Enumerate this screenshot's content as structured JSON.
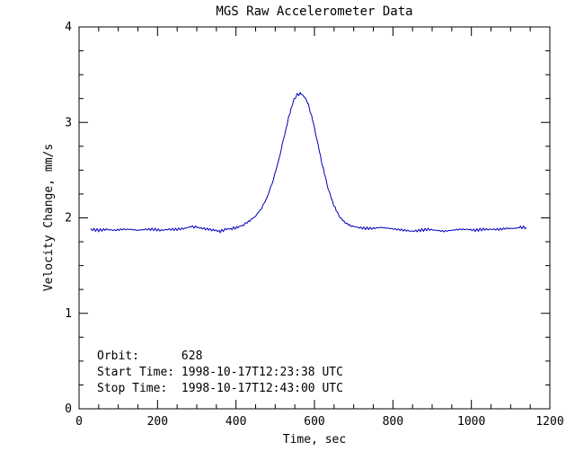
{
  "window_title": "MGS Raw Accelerometer Data",
  "chart_data": {
    "type": "line",
    "title": "MGS Raw Accelerometer Data",
    "xlabel": "Time, sec",
    "ylabel": "Velocity Change, mm/s",
    "xlim": [
      0,
      1200
    ],
    "ylim": [
      0,
      4
    ],
    "xticks": [
      0,
      200,
      400,
      600,
      800,
      1000,
      1200
    ],
    "yticks": [
      0,
      1,
      2,
      3,
      4
    ],
    "x_minor_step": 50,
    "y_minor_step": 0.25,
    "grid": false,
    "legend": "none",
    "line_color": "#0000bb",
    "background_color": "#ffffff",
    "frame_color": "#000000",
    "series": [
      {
        "name": "velocity_change_mm_s",
        "points": [
          [
            30,
            1.88
          ],
          [
            50,
            1.87
          ],
          [
            70,
            1.88
          ],
          [
            90,
            1.87
          ],
          [
            110,
            1.88
          ],
          [
            130,
            1.88
          ],
          [
            150,
            1.87
          ],
          [
            170,
            1.88
          ],
          [
            190,
            1.88
          ],
          [
            210,
            1.87
          ],
          [
            230,
            1.88
          ],
          [
            250,
            1.88
          ],
          [
            270,
            1.89
          ],
          [
            285,
            1.91
          ],
          [
            300,
            1.9
          ],
          [
            315,
            1.89
          ],
          [
            330,
            1.88
          ],
          [
            345,
            1.87
          ],
          [
            360,
            1.86
          ],
          [
            375,
            1.88
          ],
          [
            390,
            1.89
          ],
          [
            405,
            1.9
          ],
          [
            420,
            1.93
          ],
          [
            435,
            1.97
          ],
          [
            450,
            2.02
          ],
          [
            465,
            2.1
          ],
          [
            480,
            2.22
          ],
          [
            495,
            2.4
          ],
          [
            510,
            2.62
          ],
          [
            520,
            2.8
          ],
          [
            530,
            2.98
          ],
          [
            540,
            3.14
          ],
          [
            548,
            3.24
          ],
          [
            556,
            3.29
          ],
          [
            565,
            3.3
          ],
          [
            575,
            3.27
          ],
          [
            585,
            3.18
          ],
          [
            595,
            3.03
          ],
          [
            605,
            2.85
          ],
          [
            615,
            2.65
          ],
          [
            625,
            2.47
          ],
          [
            635,
            2.31
          ],
          [
            645,
            2.18
          ],
          [
            655,
            2.08
          ],
          [
            665,
            2.01
          ],
          [
            675,
            1.96
          ],
          [
            690,
            1.92
          ],
          [
            710,
            1.9
          ],
          [
            730,
            1.89
          ],
          [
            750,
            1.89
          ],
          [
            770,
            1.9
          ],
          [
            790,
            1.89
          ],
          [
            810,
            1.88
          ],
          [
            830,
            1.87
          ],
          [
            850,
            1.86
          ],
          [
            870,
            1.87
          ],
          [
            890,
            1.88
          ],
          [
            910,
            1.87
          ],
          [
            930,
            1.86
          ],
          [
            950,
            1.87
          ],
          [
            970,
            1.88
          ],
          [
            990,
            1.88
          ],
          [
            1010,
            1.87
          ],
          [
            1030,
            1.88
          ],
          [
            1050,
            1.88
          ],
          [
            1070,
            1.88
          ],
          [
            1090,
            1.89
          ],
          [
            1110,
            1.89
          ],
          [
            1125,
            1.9
          ],
          [
            1140,
            1.9
          ]
        ]
      }
    ],
    "annotations": [
      "Orbit:      628",
      "Start Time: 1998-10-17T12:23:38 UTC",
      "Stop Time:  1998-10-17T12:43:00 UTC"
    ]
  }
}
